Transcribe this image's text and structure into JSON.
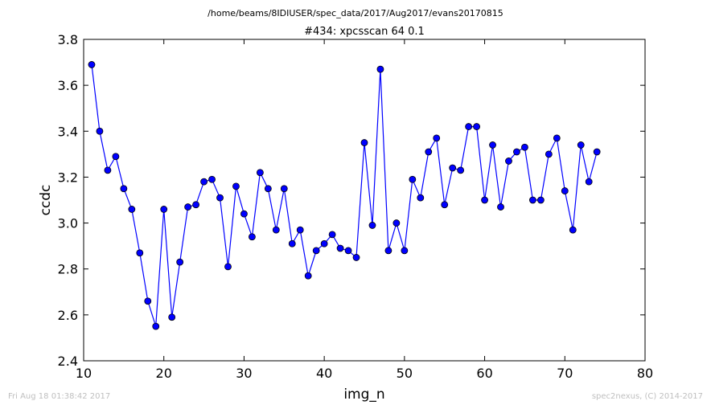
{
  "header": {
    "path": "/home/beams/8IDIUSER/spec_data/2017/Aug2017/evans20170815"
  },
  "footer": {
    "timestamp": "Fri Aug 18 01:38:42 2017",
    "credit": "spec2nexus, (C) 2014-2017"
  },
  "colors": {
    "line": "#0000ff",
    "marker_fill": "#0000ff",
    "marker_edge": "#000000"
  },
  "chart_data": {
    "type": "line",
    "title": "#434: xpcsscan 64 0.1",
    "xlabel": "img_n",
    "ylabel": "ccdc",
    "xlim": [
      10,
      80
    ],
    "ylim": [
      2.4,
      3.8
    ],
    "xticks": [
      "10",
      "20",
      "30",
      "40",
      "50",
      "60",
      "70",
      "80"
    ],
    "yticks": [
      "2.4",
      "2.6",
      "2.8",
      "3.0",
      "3.2",
      "3.4",
      "3.6",
      "3.8"
    ],
    "grid": false,
    "marker": "circle",
    "x": [
      11,
      12,
      13,
      14,
      15,
      16,
      17,
      18,
      19,
      20,
      21,
      22,
      23,
      24,
      25,
      26,
      27,
      28,
      29,
      30,
      31,
      32,
      33,
      34,
      35,
      36,
      37,
      38,
      39,
      40,
      41,
      42,
      43,
      44,
      45,
      46,
      47,
      48,
      49,
      50,
      51,
      52,
      53,
      54,
      55,
      56,
      57,
      58,
      59,
      60,
      61,
      62,
      63,
      64,
      65,
      66,
      67,
      68,
      69,
      70,
      71,
      72,
      73,
      74
    ],
    "y": [
      3.69,
      3.4,
      3.23,
      3.29,
      3.15,
      3.06,
      2.87,
      2.66,
      2.55,
      3.06,
      2.59,
      2.83,
      3.07,
      3.08,
      3.18,
      3.19,
      3.11,
      2.81,
      3.16,
      3.04,
      2.94,
      3.22,
      3.15,
      2.97,
      3.15,
      2.91,
      2.97,
      2.77,
      2.88,
      2.91,
      2.95,
      2.89,
      2.88,
      2.85,
      3.35,
      2.99,
      3.67,
      2.88,
      3.0,
      2.88,
      3.19,
      3.11,
      3.31,
      3.37,
      3.08,
      3.24,
      3.23,
      3.42,
      3.42,
      3.1,
      3.34,
      3.07,
      3.27,
      3.31,
      3.33,
      3.1,
      3.1,
      3.3,
      3.37,
      3.14,
      2.97,
      3.34,
      3.18,
      3.31
    ]
  }
}
